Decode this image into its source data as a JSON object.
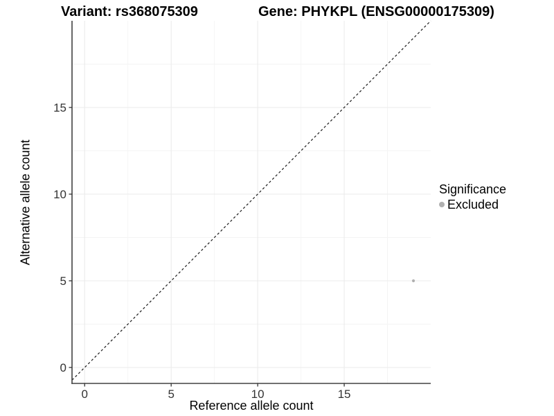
{
  "header": {
    "variant_title": "Variant: rs368075309",
    "gene_title": "Gene: PHYKPL (ENSG00000175309)"
  },
  "chart_data": {
    "type": "scatter",
    "title_left": "Variant: rs368075309",
    "title_right": "Gene: PHYKPL (ENSG00000175309)",
    "xlabel": "Reference allele count",
    "ylabel": "Alternative allele count",
    "xlim": [
      -0.73,
      20.0
    ],
    "ylim": [
      -0.92,
      20.0
    ],
    "x_ticks": [
      0,
      5,
      10,
      15
    ],
    "y_ticks": [
      0,
      5,
      10,
      15
    ],
    "x_minor_ticks": [
      2.5,
      7.5,
      12.5,
      17.5
    ],
    "y_minor_ticks": [
      2.5,
      7.5,
      12.5,
      17.5
    ],
    "grid": true,
    "legend_position": "right",
    "series": [
      {
        "name": "Excluded",
        "color": "#b0b0b0",
        "points": [
          {
            "x": 19,
            "y": 5
          }
        ]
      }
    ],
    "reference_line": {
      "equation": "y = x",
      "style": "dashed",
      "color": "#1a1a1a"
    }
  },
  "legend": {
    "title": "Significance",
    "items": [
      {
        "label": "Excluded",
        "swatch_color": "#b0b0b0"
      }
    ]
  },
  "colors": {
    "background": "#ffffff",
    "grid_major": "#ebebeb",
    "grid_minor": "#f4f4f4",
    "axis_line": "#404040",
    "tick_mark": "#333333",
    "tick_label": "#333333",
    "point": "#b0b0b0"
  }
}
